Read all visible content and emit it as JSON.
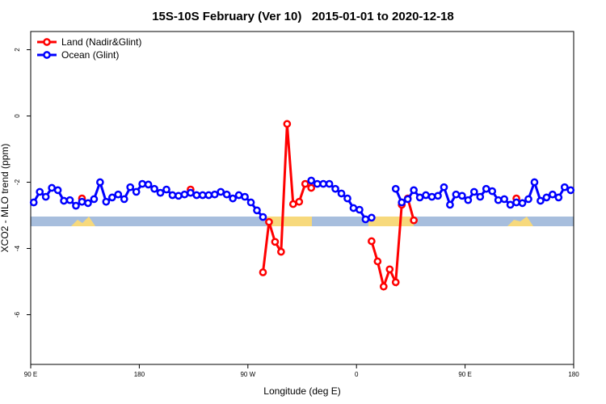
{
  "chart_data": {
    "type": "line",
    "title": "15S-10S February (Ver 10)   2015-01-01 to 2020-12-18",
    "x_label": "Longitude (deg E)",
    "y_label": "XCO2 - MLO trend (ppm)",
    "xlim": [
      90,
      540
    ],
    "ylim": [
      -7.5,
      2.55
    ],
    "xticks": [
      {
        "value": 90,
        "label": "90 E"
      },
      180,
      {
        "value": 270,
        "label": "90 W"
      },
      {
        "value": 360,
        "label": "0"
      },
      {
        "value": 450,
        "label": "90 E"
      },
      {
        "value": 540,
        "label": "180"
      }
    ],
    "yticks": [
      -6,
      -4,
      -2,
      0,
      2
    ],
    "legend": "top-left",
    "x": [
      92.5,
      97.5,
      102.5,
      107.5,
      112.5,
      117.5,
      122.5,
      127.5,
      132.5,
      137.5,
      142.5,
      147.5,
      152.5,
      157.5,
      162.5,
      167.5,
      172.5,
      177.5,
      182.5,
      187.5,
      192.5,
      197.5,
      202.5,
      207.5,
      212.5,
      217.5,
      222.5,
      227.5,
      232.5,
      237.5,
      242.5,
      247.5,
      252.5,
      257.5,
      262.5,
      267.5,
      272.5,
      277.5,
      282.5,
      287.5,
      292.5,
      297.5,
      302.5,
      307.5,
      312.5,
      317.5,
      322.5,
      327.5,
      332.5,
      337.5,
      342.5,
      347.5,
      352.5,
      357.5,
      362.5,
      367.5,
      372.5,
      377.5,
      382.5,
      387.5,
      392.5,
      397.5,
      402.5,
      407.5,
      412.5,
      417.5,
      422.5,
      427.5,
      432.5,
      437.5,
      442.5,
      447.5,
      452.5,
      457.5,
      462.5,
      467.5,
      472.5,
      477.5,
      482.5,
      487.5,
      492.5,
      497.5,
      502.5,
      507.5,
      512.5,
      517.5,
      522.5,
      527.5,
      532.5,
      537.5
    ],
    "series": [
      {
        "name": "Land (Nadir&Glint)",
        "color": "#ff0000",
        "values": [
          null,
          null,
          null,
          null,
          null,
          null,
          null,
          null,
          -2.49,
          null,
          null,
          null,
          null,
          null,
          null,
          null,
          null,
          null,
          null,
          null,
          null,
          null,
          null,
          null,
          null,
          null,
          -2.22,
          null,
          null,
          null,
          null,
          null,
          null,
          null,
          null,
          null,
          null,
          null,
          -4.72,
          -3.2,
          -3.8,
          -4.1,
          -0.24,
          -2.66,
          -2.59,
          -2.05,
          -2.17,
          null,
          null,
          null,
          null,
          null,
          null,
          null,
          null,
          null,
          -3.78,
          -4.39,
          -5.15,
          -4.63,
          -5.02,
          -2.68,
          -2.49,
          -3.15,
          null,
          null,
          null,
          null,
          null,
          null,
          null,
          null,
          null,
          null,
          null,
          null,
          null,
          null,
          null,
          null,
          -2.49,
          null,
          null,
          null,
          null,
          null,
          null,
          null,
          null,
          null
        ]
      },
      {
        "name": "Ocean (Glint)",
        "color": "#0000ff",
        "values": [
          -2.61,
          -2.29,
          -2.44,
          -2.17,
          -2.24,
          -2.56,
          -2.54,
          -2.71,
          -2.59,
          -2.63,
          -2.51,
          -2.0,
          -2.59,
          -2.46,
          -2.37,
          -2.51,
          -2.15,
          -2.29,
          -2.05,
          -2.07,
          -2.2,
          -2.32,
          -2.22,
          -2.39,
          -2.41,
          -2.37,
          -2.32,
          -2.39,
          -2.39,
          -2.39,
          -2.37,
          -2.29,
          -2.37,
          -2.49,
          -2.39,
          -2.44,
          -2.61,
          -2.85,
          -3.05,
          null,
          null,
          null,
          null,
          null,
          null,
          null,
          -1.95,
          -2.05,
          -2.05,
          -2.05,
          -2.2,
          -2.34,
          -2.49,
          -2.78,
          -2.83,
          -3.12,
          -3.07,
          null,
          null,
          null,
          -2.2,
          -2.61,
          -2.51,
          -2.24,
          -2.46,
          -2.39,
          -2.44,
          -2.41,
          -2.15,
          -2.68,
          -2.37,
          -2.41,
          -2.54,
          -2.29,
          -2.44,
          -2.2,
          -2.27,
          -2.54,
          -2.51,
          -2.68,
          -2.61,
          -2.63,
          -2.51,
          -2.0,
          -2.56,
          -2.46,
          -2.37,
          -2.46,
          -2.15,
          -2.24
        ]
      }
    ]
  }
}
